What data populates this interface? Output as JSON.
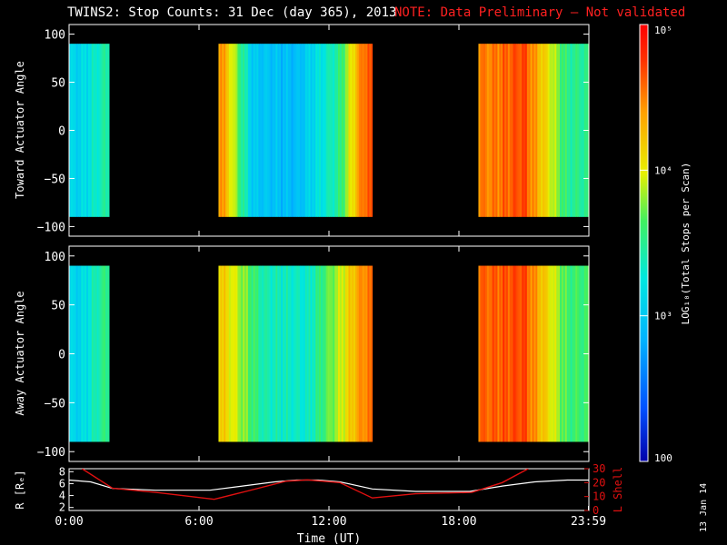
{
  "title": "TWINS2: Stop Counts: 31 Dec (day 365), 2013",
  "note": "NOTE: Data Preliminary – Not validated",
  "date_stamp": "13 Jan 14",
  "colors": {
    "background": "#000000",
    "text": "#ffffff",
    "note": "#ff2020",
    "lshell": "#e01010",
    "r_curve": "#ffffff"
  },
  "colorbar": {
    "label": "LOG₁₀(Total Stops per Scan)",
    "scale": "log",
    "range": [
      100,
      100000
    ],
    "ticks": [
      {
        "text": "100",
        "value": 100
      },
      {
        "text": "10³",
        "value": 1000
      },
      {
        "text": "10⁴",
        "value": 10000
      },
      {
        "text": "10⁵",
        "value": 100000
      }
    ]
  },
  "chart_data": [
    {
      "type": "heatmap",
      "panel": "toward",
      "ylabel": "Toward Actuator Angle",
      "xlim": [
        0,
        24
      ],
      "ylim": [
        -110,
        110
      ],
      "yticks": [
        "100",
        "50",
        "0",
        "−50",
        "−100"
      ],
      "ytick_values": [
        100,
        50,
        0,
        -50,
        -100
      ],
      "data_y_range": [
        -90,
        90
      ],
      "data_segments_hours": [
        [
          0,
          1.85
        ],
        [
          6.9,
          14.0
        ],
        [
          18.9,
          24
        ]
      ],
      "approx_log10_counts": [
        {
          "t": 0.5,
          "v": 3.1
        },
        {
          "t": 1.5,
          "v": 3.4
        },
        {
          "t": 7.0,
          "v": 4.5
        },
        {
          "t": 8.5,
          "v": 3.0
        },
        {
          "t": 10.5,
          "v": 2.9
        },
        {
          "t": 12.5,
          "v": 3.5
        },
        {
          "t": 13.6,
          "v": 4.6
        },
        {
          "t": 19.5,
          "v": 4.5
        },
        {
          "t": 21.0,
          "v": 4.7
        },
        {
          "t": 23.0,
          "v": 3.5
        }
      ]
    },
    {
      "type": "heatmap",
      "panel": "away",
      "ylabel": "Away Actuator Angle",
      "xlim": [
        0,
        24
      ],
      "ylim": [
        -110,
        110
      ],
      "yticks": [
        "100",
        "50",
        "0",
        "−50",
        "−100"
      ],
      "ytick_values": [
        100,
        50,
        0,
        -50,
        -100
      ],
      "data_y_range": [
        -90,
        90
      ],
      "data_segments_hours": [
        [
          0,
          1.85
        ],
        [
          6.9,
          14.0
        ],
        [
          18.9,
          24
        ]
      ],
      "approx_log10_counts": [
        {
          "t": 0.5,
          "v": 3.1
        },
        {
          "t": 1.5,
          "v": 3.5
        },
        {
          "t": 7.0,
          "v": 4.2
        },
        {
          "t": 9.0,
          "v": 3.4
        },
        {
          "t": 11.0,
          "v": 3.3
        },
        {
          "t": 12.5,
          "v": 3.9
        },
        {
          "t": 13.6,
          "v": 4.5
        },
        {
          "t": 19.5,
          "v": 4.6
        },
        {
          "t": 21.0,
          "v": 4.7
        },
        {
          "t": 23.0,
          "v": 3.6
        }
      ]
    },
    {
      "type": "line",
      "panel": "orbit",
      "xlabel": "Time (UT)",
      "xlim": [
        0,
        24
      ],
      "xticks": [
        "0:00",
        "6:00",
        "12:00",
        "18:00",
        "23:59"
      ],
      "xtick_values": [
        0,
        6,
        12,
        18,
        23.98
      ],
      "ylabel_left": "R [Rₑ]",
      "ylim_left": [
        1.5,
        8.5
      ],
      "yticks_left": [
        "2",
        "4",
        "6",
        "8"
      ],
      "ylabel_right": "L Shell",
      "ylim_right": [
        0,
        30
      ],
      "yticks_right": [
        "0",
        "10",
        "20",
        "30"
      ],
      "series": [
        {
          "name": "R [Rₑ]",
          "axis": "left",
          "color": "#ffffff",
          "x": [
            0,
            1,
            2,
            4,
            6.5,
            8,
            9.5,
            10.5,
            11.5,
            12.5,
            14,
            16,
            18.5,
            20,
            21.5,
            23,
            24
          ],
          "y": [
            6.6,
            6.3,
            5.2,
            4.9,
            4.9,
            5.6,
            6.3,
            6.6,
            6.6,
            6.3,
            5.1,
            4.7,
            4.7,
            5.6,
            6.3,
            6.6,
            6.6
          ]
        },
        {
          "name": "L Shell",
          "axis": "right",
          "color": "#e01010",
          "x": [
            0.6,
            2,
            4,
            6.7,
            8.5,
            10,
            11,
            12.5,
            14,
            16,
            18.6,
            20,
            21.2
          ],
          "y": [
            30,
            16,
            13,
            8,
            15,
            21,
            22,
            20,
            9,
            12,
            13,
            20,
            30
          ]
        }
      ]
    }
  ]
}
